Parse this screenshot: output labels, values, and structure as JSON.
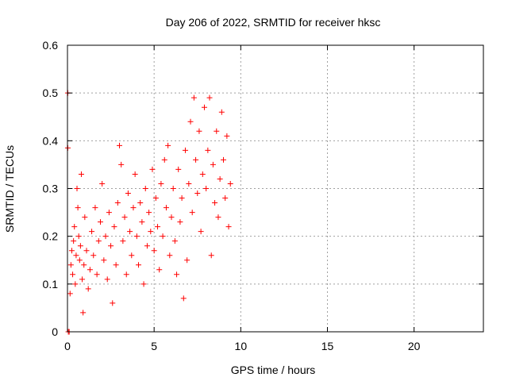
{
  "chart_data": {
    "type": "scatter",
    "title": "Day 206 of 2022, SRMTID for receiver hksc",
    "xlabel": "GPS time / hours",
    "ylabel": "SRMTID / TECUs",
    "xlim": [
      0,
      24
    ],
    "ylim": [
      0,
      0.6
    ],
    "xticks": [
      0,
      5,
      10,
      15,
      20
    ],
    "yticks": [
      0,
      0.1,
      0.2,
      0.3,
      0.4,
      0.5,
      0.6
    ],
    "xtick_labels": [
      "0",
      "5",
      "10",
      "15",
      "20"
    ],
    "ytick_labels": [
      "0",
      "0.1",
      "0.2",
      "0.3",
      "0.4",
      "0.5",
      "0.6"
    ],
    "grid": true,
    "marker": "+",
    "color": "#ff0000",
    "series": [
      {
        "name": "SRMTID",
        "points": [
          [
            0.02,
            0.5
          ],
          [
            0.02,
            0.385
          ],
          [
            0.05,
            0.0
          ],
          [
            0.1,
            0.0
          ],
          [
            0.15,
            0.08
          ],
          [
            0.2,
            0.14
          ],
          [
            0.25,
            0.17
          ],
          [
            0.3,
            0.12
          ],
          [
            0.35,
            0.19
          ],
          [
            0.4,
            0.22
          ],
          [
            0.45,
            0.1
          ],
          [
            0.5,
            0.16
          ],
          [
            0.55,
            0.3
          ],
          [
            0.6,
            0.26
          ],
          [
            0.65,
            0.2
          ],
          [
            0.7,
            0.15
          ],
          [
            0.75,
            0.18
          ],
          [
            0.8,
            0.33
          ],
          [
            0.85,
            0.11
          ],
          [
            0.9,
            0.04
          ],
          [
            0.95,
            0.14
          ],
          [
            1.0,
            0.24
          ],
          [
            1.1,
            0.17
          ],
          [
            1.2,
            0.09
          ],
          [
            1.3,
            0.13
          ],
          [
            1.4,
            0.21
          ],
          [
            1.5,
            0.16
          ],
          [
            1.6,
            0.26
          ],
          [
            1.7,
            0.12
          ],
          [
            1.8,
            0.19
          ],
          [
            1.9,
            0.23
          ],
          [
            2.0,
            0.31
          ],
          [
            2.1,
            0.15
          ],
          [
            2.2,
            0.2
          ],
          [
            2.3,
            0.11
          ],
          [
            2.4,
            0.25
          ],
          [
            2.5,
            0.18
          ],
          [
            2.6,
            0.06
          ],
          [
            2.7,
            0.22
          ],
          [
            2.8,
            0.14
          ],
          [
            2.9,
            0.27
          ],
          [
            3.0,
            0.39
          ],
          [
            3.1,
            0.35
          ],
          [
            3.2,
            0.19
          ],
          [
            3.3,
            0.24
          ],
          [
            3.4,
            0.12
          ],
          [
            3.5,
            0.29
          ],
          [
            3.6,
            0.21
          ],
          [
            3.7,
            0.16
          ],
          [
            3.8,
            0.26
          ],
          [
            3.9,
            0.33
          ],
          [
            4.0,
            0.2
          ],
          [
            4.1,
            0.14
          ],
          [
            4.2,
            0.27
          ],
          [
            4.3,
            0.23
          ],
          [
            4.4,
            0.1
          ],
          [
            4.5,
            0.3
          ],
          [
            4.6,
            0.18
          ],
          [
            4.7,
            0.25
          ],
          [
            4.8,
            0.21
          ],
          [
            4.9,
            0.34
          ],
          [
            5.0,
            0.17
          ],
          [
            5.1,
            0.28
          ],
          [
            5.2,
            0.22
          ],
          [
            5.3,
            0.13
          ],
          [
            5.4,
            0.31
          ],
          [
            5.5,
            0.2
          ],
          [
            5.6,
            0.36
          ],
          [
            5.7,
            0.26
          ],
          [
            5.8,
            0.39
          ],
          [
            5.9,
            0.16
          ],
          [
            6.0,
            0.24
          ],
          [
            6.1,
            0.3
          ],
          [
            6.2,
            0.19
          ],
          [
            6.3,
            0.12
          ],
          [
            6.4,
            0.34
          ],
          [
            6.5,
            0.23
          ],
          [
            6.6,
            0.28
          ],
          [
            6.7,
            0.07
          ],
          [
            6.8,
            0.38
          ],
          [
            6.9,
            0.15
          ],
          [
            7.0,
            0.31
          ],
          [
            7.1,
            0.44
          ],
          [
            7.2,
            0.25
          ],
          [
            7.3,
            0.49
          ],
          [
            7.4,
            0.36
          ],
          [
            7.5,
            0.29
          ],
          [
            7.6,
            0.42
          ],
          [
            7.7,
            0.21
          ],
          [
            7.8,
            0.33
          ],
          [
            7.9,
            0.47
          ],
          [
            8.0,
            0.3
          ],
          [
            8.1,
            0.38
          ],
          [
            8.2,
            0.49
          ],
          [
            8.3,
            0.16
          ],
          [
            8.4,
            0.35
          ],
          [
            8.5,
            0.27
          ],
          [
            8.6,
            0.42
          ],
          [
            8.7,
            0.24
          ],
          [
            8.8,
            0.32
          ],
          [
            8.9,
            0.46
          ],
          [
            9.0,
            0.36
          ],
          [
            9.1,
            0.28
          ],
          [
            9.2,
            0.41
          ],
          [
            9.3,
            0.22
          ],
          [
            9.4,
            0.31
          ]
        ]
      }
    ]
  }
}
